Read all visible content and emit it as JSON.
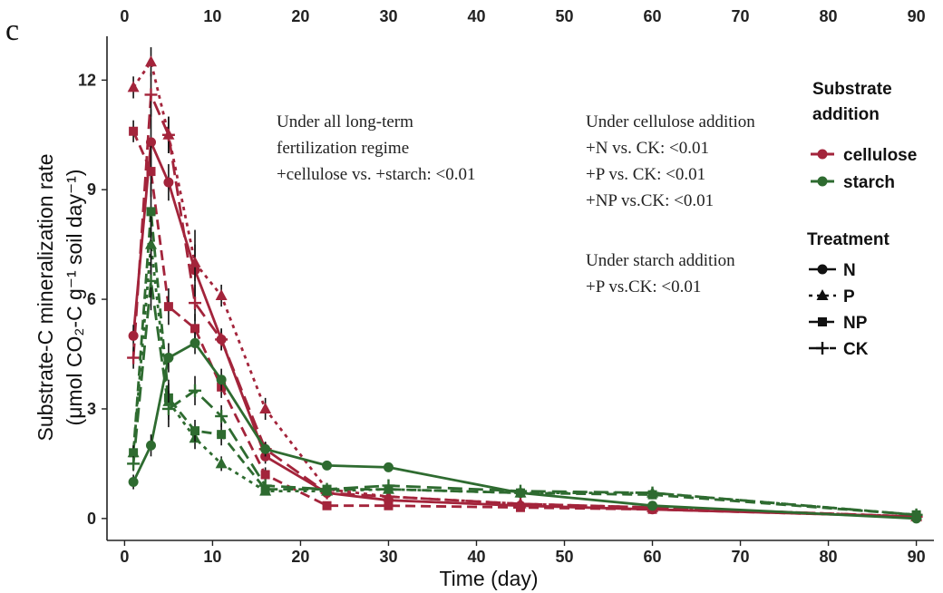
{
  "panel_label": "c",
  "top_ticks": [
    "0",
    "10",
    "20",
    "30",
    "40",
    "50",
    "60",
    "70",
    "80",
    "90"
  ],
  "annotations": [
    [
      "Under all long-term",
      "fertilization regime",
      "+cellulose vs. +starch: <0.01"
    ],
    [
      "Under cellulose addition",
      "+N vs. CK: <0.01",
      "+P vs. CK: <0.01",
      "+NP vs.CK: <0.01"
    ],
    [
      "Under starch addition",
      "+P vs.CK: <0.01"
    ]
  ],
  "legend": {
    "substrate_title": [
      "Substrate",
      "addition"
    ],
    "substrate_items": [
      {
        "label": "cellulose",
        "color": "#a3243b"
      },
      {
        "label": "starch",
        "color": "#2e6b30"
      }
    ],
    "treatment_title": "Treatment",
    "treatment_items": [
      {
        "label": "N",
        "marker": "circle",
        "dash": "solid"
      },
      {
        "label": "P",
        "marker": "triangle",
        "dash": "dotted"
      },
      {
        "label": "NP",
        "marker": "square",
        "dash": "dashed"
      },
      {
        "label": "CK",
        "marker": "cross",
        "dash": "longdash"
      }
    ]
  },
  "chart_data": {
    "type": "line",
    "title": "",
    "xlabel": "Time (day)",
    "ylabel": [
      "Substrate-C mineralization rate",
      "(μmol CO₂-C g⁻¹ soil day⁻¹)"
    ],
    "xlim": [
      -2,
      92
    ],
    "ylim": [
      -0.6,
      13.2
    ],
    "xticks": [
      0,
      10,
      20,
      30,
      40,
      50,
      60,
      70,
      80,
      90
    ],
    "yticks": [
      0,
      3,
      6,
      9,
      12
    ],
    "x": [
      1,
      3,
      5,
      8,
      11,
      16,
      23,
      30,
      45,
      60,
      90
    ],
    "series": [
      {
        "substrate": "cellulose",
        "treatment": "N",
        "color": "#a3243b",
        "marker": "circle",
        "dash": "solid",
        "values": [
          5.0,
          10.3,
          9.2,
          6.8,
          4.9,
          1.7,
          0.7,
          0.5,
          0.35,
          0.25,
          0.05
        ],
        "err": [
          0.3,
          0.9,
          0.5,
          1.1,
          0.3,
          0.2,
          0.1,
          0.1,
          0.05,
          0.05,
          0.03
        ]
      },
      {
        "substrate": "cellulose",
        "treatment": "P",
        "color": "#a3243b",
        "marker": "triangle",
        "dash": "dotted",
        "values": [
          11.8,
          12.5,
          10.5,
          7.0,
          6.1,
          3.0,
          0.8,
          0.6,
          0.4,
          0.3,
          0.05
        ],
        "err": [
          0.3,
          0.4,
          0.5,
          0.5,
          0.3,
          0.3,
          0.1,
          0.1,
          0.05,
          0.05,
          0.03
        ]
      },
      {
        "substrate": "cellulose",
        "treatment": "NP",
        "color": "#a3243b",
        "marker": "square",
        "dash": "dashed",
        "values": [
          10.6,
          9.5,
          5.8,
          5.2,
          3.6,
          1.2,
          0.35,
          0.35,
          0.3,
          0.25,
          0.05
        ],
        "err": [
          0.3,
          0.7,
          0.5,
          0.4,
          0.3,
          0.2,
          0.1,
          0.1,
          0.05,
          0.05,
          0.03
        ]
      },
      {
        "substrate": "cellulose",
        "treatment": "CK",
        "color": "#a3243b",
        "marker": "cross",
        "dash": "longdash",
        "values": [
          4.4,
          11.6,
          10.5,
          5.9,
          4.9,
          1.9,
          0.7,
          0.6,
          0.4,
          0.3,
          0.05
        ],
        "err": [
          0.3,
          0.6,
          0.5,
          0.5,
          0.3,
          0.2,
          0.1,
          0.1,
          0.05,
          0.05,
          0.03
        ]
      },
      {
        "substrate": "starch",
        "treatment": "N",
        "color": "#2e6b30",
        "marker": "circle",
        "dash": "solid",
        "values": [
          1.0,
          2.0,
          4.4,
          4.8,
          3.8,
          1.9,
          1.45,
          1.4,
          0.7,
          0.35,
          0.0
        ],
        "err": [
          0.2,
          0.3,
          0.4,
          0.3,
          0.3,
          0.2,
          0.1,
          0.1,
          0.1,
          0.1,
          0.03
        ]
      },
      {
        "substrate": "starch",
        "treatment": "P",
        "color": "#2e6b30",
        "marker": "triangle",
        "dash": "dotted",
        "values": [
          1.8,
          7.5,
          3.2,
          2.2,
          1.5,
          0.75,
          0.75,
          0.8,
          0.7,
          0.7,
          0.1
        ],
        "err": [
          0.2,
          0.9,
          0.5,
          0.3,
          0.2,
          0.1,
          0.1,
          0.1,
          0.1,
          0.1,
          0.03
        ]
      },
      {
        "substrate": "starch",
        "treatment": "NP",
        "color": "#2e6b30",
        "marker": "square",
        "dash": "dashed",
        "values": [
          1.8,
          8.4,
          3.3,
          2.4,
          2.3,
          0.8,
          0.8,
          0.8,
          0.7,
          0.65,
          0.1
        ],
        "err": [
          0.2,
          0.8,
          0.5,
          0.3,
          0.3,
          0.1,
          0.1,
          0.1,
          0.1,
          0.1,
          0.03
        ]
      },
      {
        "substrate": "starch",
        "treatment": "CK",
        "color": "#2e6b30",
        "marker": "cross",
        "dash": "longdash",
        "values": [
          1.5,
          6.5,
          3.0,
          3.5,
          2.8,
          0.9,
          0.8,
          0.9,
          0.75,
          0.7,
          0.1
        ],
        "err": [
          0.2,
          0.8,
          0.5,
          0.4,
          0.3,
          0.1,
          0.1,
          0.1,
          0.1,
          0.1,
          0.03
        ]
      }
    ],
    "grid": false,
    "legend_position": "right"
  }
}
